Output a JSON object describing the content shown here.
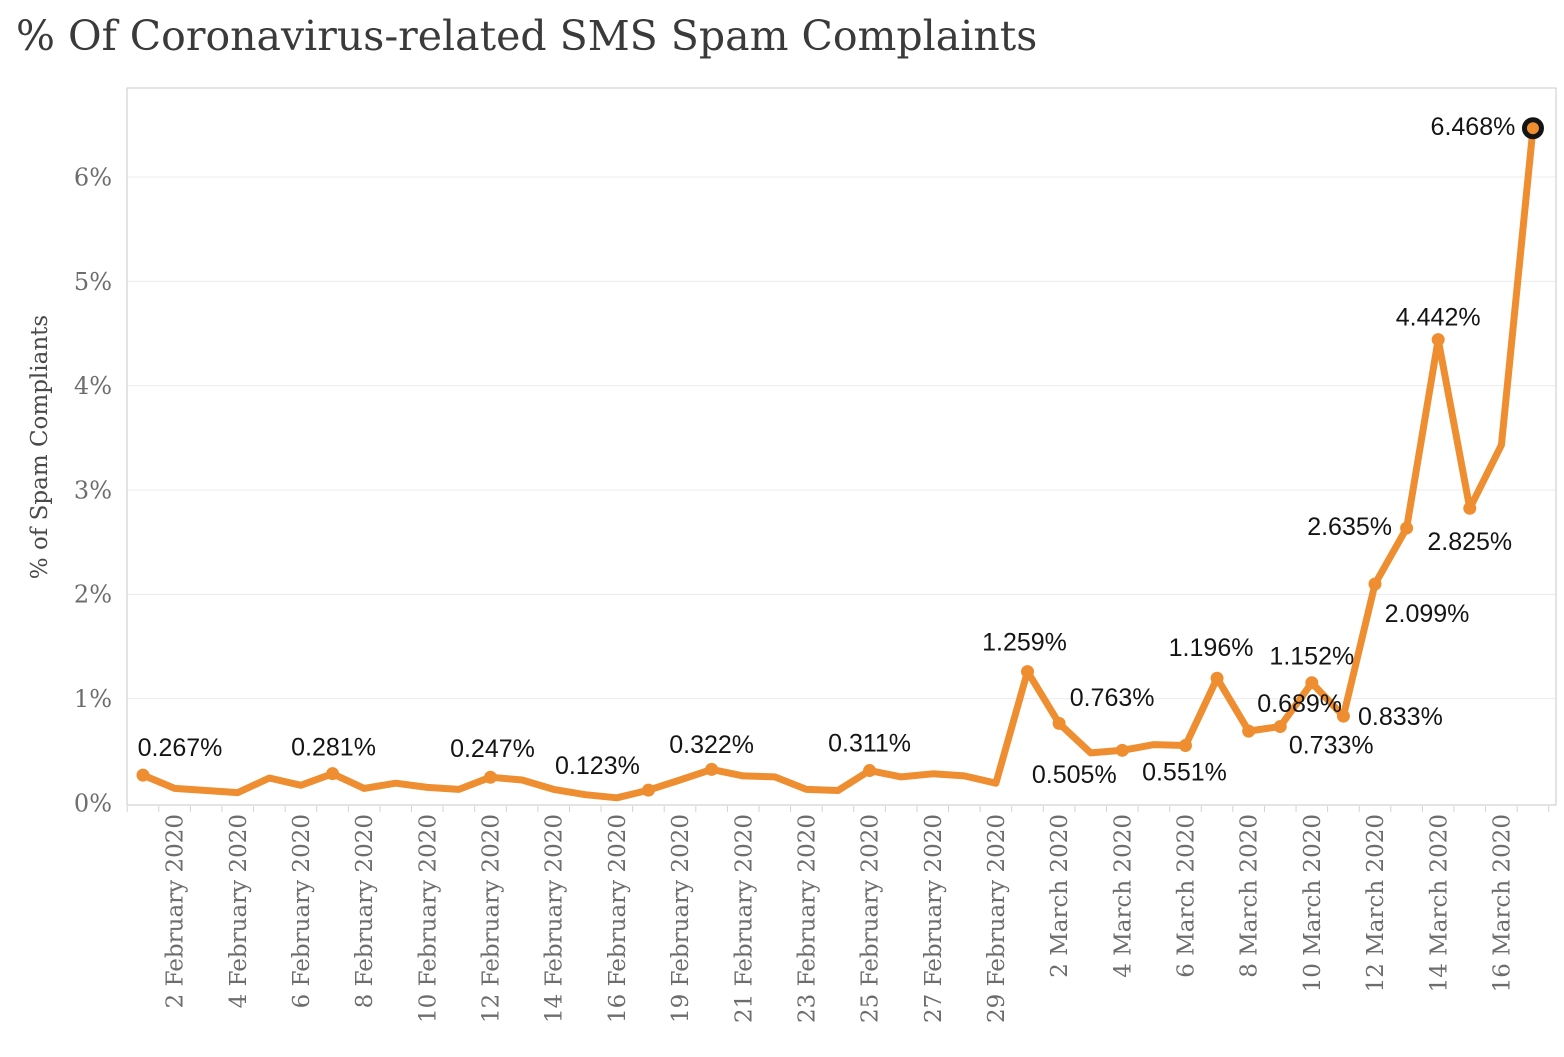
{
  "title": "% Of Coronavirus-related SMS Spam Complaints",
  "colors": {
    "line": "#EE8E30",
    "marker": "#EE8E30",
    "final_marker_ring": "#141414",
    "data_label": "#141414",
    "tick_label": "#6d6d6d",
    "axis_title": "#4a4a4a",
    "title": "#3a3a3a",
    "gridline": "#ececec",
    "plot_border": "#c9c9c9",
    "tick_mark": "#d2d2d2",
    "background": "#ffffff"
  },
  "chart_data": {
    "type": "line",
    "title": "% Of Coronavirus-related SMS Spam Complaints",
    "xlabel": "",
    "ylabel": "% of Spam Compliants",
    "ylim": [
      0,
      6.85
    ],
    "grid": "horizontal",
    "legend": "none",
    "y_ticks": [
      {
        "value": 0,
        "label": "0%"
      },
      {
        "value": 1,
        "label": "1%"
      },
      {
        "value": 2,
        "label": "2%"
      },
      {
        "value": 3,
        "label": "3%"
      },
      {
        "value": 4,
        "label": "4%"
      },
      {
        "value": 5,
        "label": "5%"
      },
      {
        "value": 6,
        "label": "6%"
      }
    ],
    "x_ticks": [
      {
        "index": 1,
        "label": "2 February 2020"
      },
      {
        "index": 3,
        "label": "4 February 2020"
      },
      {
        "index": 5,
        "label": "6 February 2020"
      },
      {
        "index": 7,
        "label": "8 February 2020"
      },
      {
        "index": 9,
        "label": "10 February 2020"
      },
      {
        "index": 11,
        "label": "12 February 2020"
      },
      {
        "index": 13,
        "label": "14 February 2020"
      },
      {
        "index": 15,
        "label": "16 February 2020"
      },
      {
        "index": 17,
        "label": "19 February 2020"
      },
      {
        "index": 19,
        "label": "21 February 2020"
      },
      {
        "index": 21,
        "label": "23 February 2020"
      },
      {
        "index": 23,
        "label": "25 February 2020"
      },
      {
        "index": 25,
        "label": "27 February 2020"
      },
      {
        "index": 27,
        "label": "29 February 2020"
      },
      {
        "index": 29,
        "label": "2 March 2020"
      },
      {
        "index": 31,
        "label": "4 March 2020"
      },
      {
        "index": 33,
        "label": "6 March 2020"
      },
      {
        "index": 35,
        "label": "8 March 2020"
      },
      {
        "index": 37,
        "label": "10 March 2020"
      },
      {
        "index": 39,
        "label": "12 March 2020"
      },
      {
        "index": 41,
        "label": "14 March 2020"
      },
      {
        "index": 43,
        "label": "16 March 2020"
      }
    ],
    "points": [
      {
        "date": "1 February 2020",
        "value": 0.267,
        "label": "0.267%",
        "offset": [
          37,
          -28
        ]
      },
      {
        "date": "2 February 2020",
        "value": 0.14,
        "label": null
      },
      {
        "date": "3 February 2020",
        "value": 0.12,
        "label": null
      },
      {
        "date": "4 February 2020",
        "value": 0.1,
        "label": null
      },
      {
        "date": "5 February 2020",
        "value": 0.24,
        "label": null
      },
      {
        "date": "6 February 2020",
        "value": 0.17,
        "label": null
      },
      {
        "date": "7 February 2020",
        "value": 0.281,
        "label": "0.281%",
        "offset": [
          1,
          -27
        ]
      },
      {
        "date": "8 February 2020",
        "value": 0.14,
        "label": null
      },
      {
        "date": "9 February 2020",
        "value": 0.19,
        "label": null
      },
      {
        "date": "10 February 2020",
        "value": 0.15,
        "label": null
      },
      {
        "date": "11 February 2020",
        "value": 0.13,
        "label": null
      },
      {
        "date": "12 February 2020",
        "value": 0.247,
        "label": "0.247%",
        "offset": [
          2,
          -29
        ]
      },
      {
        "date": "13 February 2020",
        "value": 0.22,
        "label": null
      },
      {
        "date": "14 February 2020",
        "value": 0.13,
        "label": null
      },
      {
        "date": "15 February 2020",
        "value": 0.08,
        "label": null
      },
      {
        "date": "16 February 2020",
        "value": 0.05,
        "label": null
      },
      {
        "date": "17 February 2020",
        "value": 0.123,
        "label": "0.123%",
        "offset": [
          -51,
          -25
        ]
      },
      {
        "date": "19 February 2020",
        "value": 0.22,
        "label": null
      },
      {
        "date": "20 February 2020",
        "value": 0.322,
        "label": "0.322%",
        "offset": [
          0,
          -25
        ]
      },
      {
        "date": "21 February 2020",
        "value": 0.26,
        "label": null
      },
      {
        "date": "22 February 2020",
        "value": 0.25,
        "label": null
      },
      {
        "date": "23 February 2020",
        "value": 0.13,
        "label": null
      },
      {
        "date": "24 February 2020",
        "value": 0.12,
        "label": null
      },
      {
        "date": "25 February 2020",
        "value": 0.311,
        "label": "0.311%",
        "offset": [
          0,
          -28
        ]
      },
      {
        "date": "26 February 2020",
        "value": 0.25,
        "label": null
      },
      {
        "date": "27 February 2020",
        "value": 0.28,
        "label": null
      },
      {
        "date": "28 February 2020",
        "value": 0.26,
        "label": null
      },
      {
        "date": "29 February 2020",
        "value": 0.19,
        "label": null
      },
      {
        "date": "1 March 2020",
        "value": 1.259,
        "label": "1.259%",
        "offset": [
          -3,
          -30
        ]
      },
      {
        "date": "2 March 2020",
        "value": 0.763,
        "label": "0.763%",
        "offset": [
          53,
          -26
        ]
      },
      {
        "date": "3 March 2020",
        "value": 0.48,
        "label": null
      },
      {
        "date": "4 March 2020",
        "value": 0.505,
        "label": "0.505%",
        "offset": [
          -48,
          24
        ]
      },
      {
        "date": "5 March 2020",
        "value": 0.56,
        "label": null
      },
      {
        "date": "6 March 2020",
        "value": 0.551,
        "label": "0.551%",
        "offset": [
          -1,
          26
        ]
      },
      {
        "date": "7 March 2020",
        "value": 1.196,
        "label": "1.196%",
        "offset": [
          -6,
          -31
        ]
      },
      {
        "date": "8 March 2020",
        "value": 0.689,
        "label": "0.689%",
        "offset": [
          51,
          -28
        ]
      },
      {
        "date": "9 March 2020",
        "value": 0.733,
        "label": "0.733%",
        "offset": [
          51,
          18
        ]
      },
      {
        "date": "10 March 2020",
        "value": 1.152,
        "label": "1.152%",
        "offset": [
          0,
          -27
        ]
      },
      {
        "date": "11 March 2020",
        "value": 0.833,
        "label": "0.833%",
        "offset": [
          57,
          0
        ]
      },
      {
        "date": "12 March 2020",
        "value": 2.099,
        "label": "2.099%",
        "offset": [
          52,
          29
        ]
      },
      {
        "date": "13 March 2020",
        "value": 2.635,
        "label": "2.635%",
        "offset": [
          -57,
          -2
        ]
      },
      {
        "date": "14 March 2020",
        "value": 4.442,
        "label": "4.442%",
        "offset": [
          0,
          -23
        ]
      },
      {
        "date": "15 March 2020",
        "value": 2.825,
        "label": "2.825%",
        "offset": [
          0,
          33
        ]
      },
      {
        "date": "16 March 2020",
        "value": 3.43,
        "label": null
      },
      {
        "date": "17 March 2020",
        "value": 6.468,
        "label": "6.468%",
        "offset": [
          -60,
          -2
        ],
        "highlight": true
      }
    ]
  }
}
